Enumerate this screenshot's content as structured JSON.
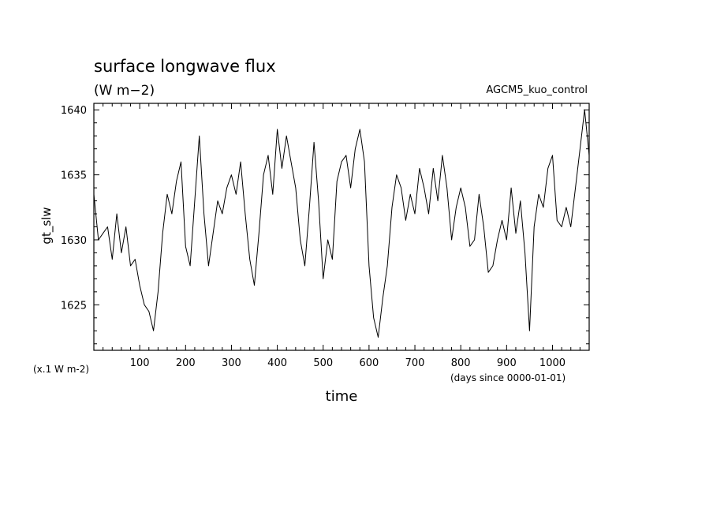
{
  "chart_data": {
    "type": "line",
    "title": "surface longwave flux",
    "subtitle": "(W m−2)",
    "run_label": "AGCM5_kuo_control",
    "ylabel": "gt_slw",
    "y_unit_note": "(x.1 W m-2)",
    "xlabel": "time",
    "x_unit_note": "(days since 0000-01-01)",
    "xlim": [
      0,
      1080
    ],
    "ylim": [
      1621.5,
      1640.5
    ],
    "x_ticks": [
      100,
      200,
      300,
      400,
      500,
      600,
      700,
      800,
      900,
      1000
    ],
    "y_ticks": [
      1625,
      1630,
      1635,
      1640
    ],
    "grid": false,
    "series": [
      {
        "x": [
          0,
          10,
          20,
          30,
          40,
          50,
          60,
          70,
          80,
          90,
          100,
          110,
          120,
          130,
          140,
          150,
          160,
          170,
          180,
          190,
          200,
          210,
          220,
          230,
          240,
          250,
          260,
          270,
          280,
          290,
          300,
          310,
          320,
          330,
          340,
          350,
          360,
          370,
          380,
          390,
          400,
          410,
          420,
          430,
          440,
          450,
          460,
          470,
          480,
          490,
          500,
          510,
          520,
          530,
          540,
          550,
          560,
          570,
          580,
          590,
          600,
          610,
          620,
          630,
          640,
          650,
          660,
          670,
          680,
          690,
          700,
          710,
          720,
          730,
          740,
          750,
          760,
          770,
          780,
          790,
          800,
          810,
          820,
          830,
          840,
          850,
          860,
          870,
          880,
          890,
          900,
          910,
          920,
          930,
          940,
          950,
          960,
          970,
          980,
          990,
          1000,
          1010,
          1020,
          1030,
          1040,
          1050,
          1060,
          1070,
          1080
        ],
        "y": [
          1633.5,
          1630.0,
          1630.5,
          1631.0,
          1628.5,
          1632.0,
          1629.0,
          1631.0,
          1628.0,
          1628.5,
          1626.5,
          1625.0,
          1624.5,
          1623.0,
          1626.0,
          1630.5,
          1633.5,
          1632.0,
          1634.5,
          1636.0,
          1629.5,
          1628.0,
          1633.0,
          1638.0,
          1632.0,
          1628.0,
          1630.5,
          1633.0,
          1632.0,
          1634.0,
          1635.0,
          1633.5,
          1636.0,
          1632.0,
          1628.5,
          1626.5,
          1630.5,
          1635.0,
          1636.5,
          1633.5,
          1638.5,
          1635.5,
          1638.0,
          1636.0,
          1634.0,
          1630.0,
          1628.0,
          1632.5,
          1637.5,
          1633.0,
          1627.0,
          1630.0,
          1628.5,
          1634.5,
          1636.0,
          1636.5,
          1634.0,
          1637.0,
          1638.5,
          1636.0,
          1628.0,
          1624.0,
          1622.5,
          1625.5,
          1628.0,
          1632.5,
          1635.0,
          1634.0,
          1631.5,
          1633.5,
          1632.0,
          1635.5,
          1634.0,
          1632.0,
          1635.5,
          1633.0,
          1636.5,
          1634.0,
          1630.0,
          1632.5,
          1634.0,
          1632.5,
          1629.5,
          1630.0,
          1633.5,
          1631.0,
          1627.5,
          1628.0,
          1630.0,
          1631.5,
          1630.0,
          1634.0,
          1630.5,
          1633.0,
          1629.0,
          1623.0,
          1631.0,
          1633.5,
          1632.5,
          1635.5,
          1636.5,
          1631.5,
          1631.0,
          1632.5,
          1631.0,
          1634.0,
          1637.0,
          1640.0,
          1636.5
        ]
      }
    ]
  }
}
